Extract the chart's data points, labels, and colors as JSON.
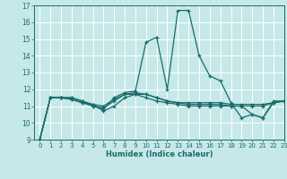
{
  "title": "",
  "xlabel": "Humidex (Indice chaleur)",
  "xlim": [
    -0.5,
    23
  ],
  "ylim": [
    9,
    17
  ],
  "yticks": [
    9,
    10,
    11,
    12,
    13,
    14,
    15,
    16,
    17
  ],
  "xticks": [
    0,
    1,
    2,
    3,
    4,
    5,
    6,
    7,
    8,
    9,
    10,
    11,
    12,
    13,
    14,
    15,
    16,
    17,
    18,
    19,
    20,
    21,
    22,
    23
  ],
  "bg_color": "#c6e8e8",
  "line_color": "#1a6b6b",
  "grid_color": "#ffffff",
  "lines": [
    [
      9.0,
      11.5,
      11.5,
      11.5,
      11.3,
      11.0,
      10.8,
      11.5,
      11.8,
      11.9,
      14.8,
      15.1,
      12.0,
      16.7,
      16.7,
      14.0,
      12.8,
      12.5,
      11.2,
      10.3,
      10.5,
      10.3,
      11.3,
      11.3
    ],
    [
      9.0,
      11.5,
      11.5,
      11.4,
      11.2,
      11.0,
      10.9,
      11.3,
      11.7,
      11.7,
      11.5,
      11.3,
      11.2,
      11.1,
      11.0,
      11.0,
      11.0,
      11.0,
      11.0,
      11.0,
      11.0,
      11.0,
      11.2,
      11.3
    ],
    [
      9.0,
      11.5,
      11.5,
      11.4,
      11.2,
      11.1,
      11.0,
      11.4,
      11.7,
      11.8,
      11.7,
      11.5,
      11.3,
      11.2,
      11.2,
      11.2,
      11.2,
      11.2,
      11.1,
      11.1,
      11.1,
      11.1,
      11.2,
      11.3
    ],
    [
      9.0,
      11.5,
      11.5,
      11.5,
      11.3,
      11.1,
      10.7,
      11.0,
      11.5,
      11.7,
      11.7,
      11.5,
      11.3,
      11.2,
      11.1,
      11.1,
      11.1,
      11.1,
      11.0,
      11.0,
      10.5,
      10.3,
      11.2,
      11.3
    ]
  ]
}
